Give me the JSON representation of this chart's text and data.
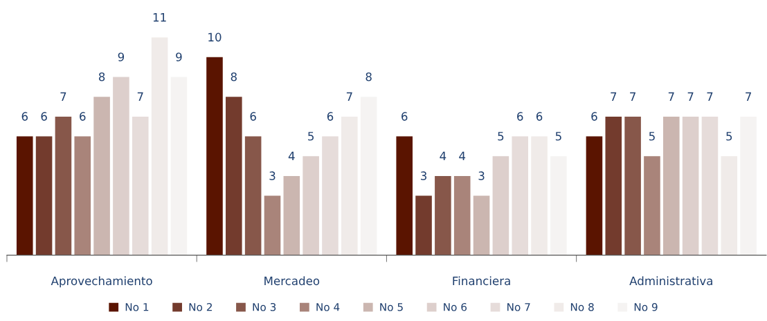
{
  "chart_data": {
    "type": "bar",
    "categories": [
      "Aprovechamiento",
      "Mercadeo",
      "Financiera",
      "Administrativa"
    ],
    "series": [
      {
        "name": "No 1",
        "color": "#5a1400",
        "values": [
          6,
          10,
          6,
          6
        ]
      },
      {
        "name": "No 2",
        "color": "#733b2d",
        "values": [
          6,
          8,
          3,
          7
        ]
      },
      {
        "name": "No 3",
        "color": "#87574a",
        "values": [
          7,
          6,
          4,
          7
        ]
      },
      {
        "name": "No 4",
        "color": "#a9847a",
        "values": [
          6,
          3,
          4,
          5
        ]
      },
      {
        "name": "No 5",
        "color": "#cbb6b0",
        "values": [
          8,
          4,
          3,
          7
        ]
      },
      {
        "name": "No 6",
        "color": "#ddcfcc",
        "values": [
          9,
          5,
          5,
          7
        ]
      },
      {
        "name": "No 7",
        "color": "#e6dcda",
        "values": [
          7,
          6,
          6,
          7
        ]
      },
      {
        "name": "No 8",
        "color": "#f0ebe9",
        "values": [
          11,
          7,
          6,
          5
        ]
      },
      {
        "name": "No 9",
        "color": "#f5f3f2",
        "values": [
          9,
          8,
          5,
          7
        ]
      }
    ],
    "data_labels": true,
    "legend": "bottom",
    "grid": false
  }
}
